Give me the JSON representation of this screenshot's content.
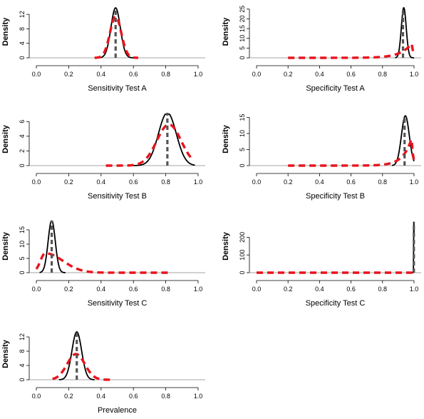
{
  "chart_data": [
    {
      "type": "line",
      "xlabel": "Sensitivity Test A",
      "ylabel": "Density",
      "xlim": [
        0,
        1
      ],
      "xticks": [
        "0.0",
        "0.2",
        "0.4",
        "0.6",
        "0.8",
        "1.0"
      ],
      "ylim": [
        0,
        14
      ],
      "yticks": [
        0,
        4,
        8,
        12
      ],
      "series": [
        {
          "style": "solid",
          "color": "#000000",
          "kind": "normal",
          "mean": 0.49,
          "sd": 0.029,
          "support": [
            0.38,
            0.62
          ],
          "peak": 13.8
        },
        {
          "style": "dashed",
          "color": "#e8141c",
          "kind": "normal",
          "mean": 0.49,
          "sd": 0.035,
          "support": [
            0.36,
            0.63
          ],
          "peak": 11.4
        },
        {
          "style": "dashed",
          "color": "#555555",
          "kind": "vline",
          "x": 0.49,
          "height": 13.8
        }
      ]
    },
    {
      "type": "line",
      "xlabel": "Specificity Test A",
      "ylabel": "Density",
      "xlim": [
        0,
        1
      ],
      "xticks": [
        "0.0",
        "0.2",
        "0.4",
        "0.6",
        "0.8",
        "1.0"
      ],
      "ylim": [
        0,
        26
      ],
      "yticks": [
        0,
        5,
        10,
        15,
        20,
        25
      ],
      "series": [
        {
          "style": "solid",
          "color": "#000000",
          "kind": "normal",
          "mean": 0.935,
          "sd": 0.0155,
          "support": [
            0.88,
            1.0
          ],
          "peak": 25.7
        },
        {
          "style": "dashed",
          "color": "#e8141c",
          "kind": "exp",
          "peakx": 0.985,
          "peak": 7.4,
          "scale": 0.07,
          "support": [
            0.2,
            1.0
          ]
        },
        {
          "style": "dashed",
          "color": "#555555",
          "kind": "vline",
          "x": 0.93,
          "height": 25.7
        }
      ]
    },
    {
      "type": "line",
      "xlabel": "Sensitivity Test B",
      "ylabel": "Density",
      "xlim": [
        0,
        1
      ],
      "xticks": [
        "0.0",
        "0.2",
        "0.4",
        "0.6",
        "0.8",
        "1.0"
      ],
      "ylim": [
        0,
        7
      ],
      "yticks": [
        0,
        2,
        4,
        6
      ],
      "series": [
        {
          "style": "solid",
          "color": "#000000",
          "kind": "normal",
          "mean": 0.81,
          "sd": 0.055,
          "support": [
            0.6,
            0.98
          ],
          "peak": 7.2
        },
        {
          "style": "dashed",
          "color": "#e8141c",
          "kind": "normal",
          "mean": 0.82,
          "sd": 0.075,
          "support": [
            0.43,
            0.97
          ],
          "peak": 5.6
        },
        {
          "style": "dashed",
          "color": "#555555",
          "kind": "vline",
          "x": 0.81,
          "height": 7.2
        }
      ]
    },
    {
      "type": "line",
      "xlabel": "Specificity Test B",
      "ylabel": "Density",
      "xlim": [
        0,
        1
      ],
      "xticks": [
        "0.0",
        "0.2",
        "0.4",
        "0.6",
        "0.8",
        "1.0"
      ],
      "ylim": [
        0,
        16
      ],
      "yticks": [
        0,
        5,
        10,
        15
      ],
      "series": [
        {
          "style": "solid",
          "color": "#000000",
          "kind": "normal",
          "mean": 0.945,
          "sd": 0.025,
          "support": [
            0.86,
            1.0
          ],
          "peak": 15.5
        },
        {
          "style": "dashed",
          "color": "#e8141c",
          "kind": "exp",
          "peakx": 0.985,
          "peak": 8.5,
          "scale": 0.055,
          "support": [
            0.2,
            1.0
          ]
        },
        {
          "style": "dashed",
          "color": "#555555",
          "kind": "vline",
          "x": 0.94,
          "height": 15.5
        }
      ]
    },
    {
      "type": "line",
      "xlabel": "Sensitivity Test C",
      "ylabel": "Density",
      "xlim": [
        0,
        1
      ],
      "xticks": [
        "0.0",
        "0.2",
        "0.4",
        "0.6",
        "0.8",
        "1.0"
      ],
      "ylim": [
        0,
        18
      ],
      "yticks": [
        0,
        5,
        10,
        15
      ],
      "series": [
        {
          "style": "solid",
          "color": "#000000",
          "kind": "normal",
          "mean": 0.095,
          "sd": 0.022,
          "support": [
            0.02,
            0.18
          ],
          "peak": 18.3
        },
        {
          "style": "dashed",
          "color": "#e8141c",
          "kind": "skew",
          "peakx": 0.055,
          "peak": 6.8,
          "rise": 0.03,
          "fall": 0.085,
          "support": [
            0.0,
            0.83
          ]
        },
        {
          "style": "dashed",
          "color": "#555555",
          "kind": "vline",
          "x": 0.095,
          "height": 18.3
        }
      ]
    },
    {
      "type": "line",
      "xlabel": "Specificity Test C",
      "ylabel": "Density",
      "xlim": [
        0,
        1
      ],
      "xticks": [
        "0.0",
        "0.2",
        "0.4",
        "0.6",
        "0.8",
        "1.0"
      ],
      "ylim": [
        0,
        290
      ],
      "yticks": [
        0,
        100,
        200
      ],
      "series": [
        {
          "style": "solid",
          "color": "#000000",
          "kind": "normal",
          "mean": 0.999,
          "sd": 0.0014,
          "support": [
            0.99,
            1.0
          ],
          "peak": 285
        },
        {
          "style": "dashed",
          "color": "#e8141c",
          "kind": "exp",
          "peakx": 0.999,
          "peak": 12,
          "scale": 0.004,
          "support": [
            0.0,
            1.0
          ]
        },
        {
          "style": "dashed",
          "color": "#555555",
          "kind": "vline",
          "x": 0.999,
          "height": 285
        }
      ]
    },
    {
      "type": "line",
      "xlabel": "Prevalence",
      "ylabel": "Density",
      "xlim": [
        0,
        1
      ],
      "xticks": [
        "0.0",
        "0.2",
        "0.4",
        "0.6",
        "0.8",
        "1.0"
      ],
      "ylim": [
        0,
        14
      ],
      "yticks": [
        0,
        4,
        8,
        12
      ],
      "series": [
        {
          "style": "solid",
          "color": "#000000",
          "kind": "normal",
          "mean": 0.25,
          "sd": 0.03,
          "support": [
            0.14,
            0.36
          ],
          "peak": 13.4
        },
        {
          "style": "dashed",
          "color": "#e8141c",
          "kind": "normal",
          "mean": 0.245,
          "sd": 0.055,
          "support": [
            0.1,
            0.47
          ],
          "peak": 7.2
        },
        {
          "style": "dashed",
          "color": "#555555",
          "kind": "vline",
          "x": 0.25,
          "height": 13.4
        }
      ]
    }
  ]
}
